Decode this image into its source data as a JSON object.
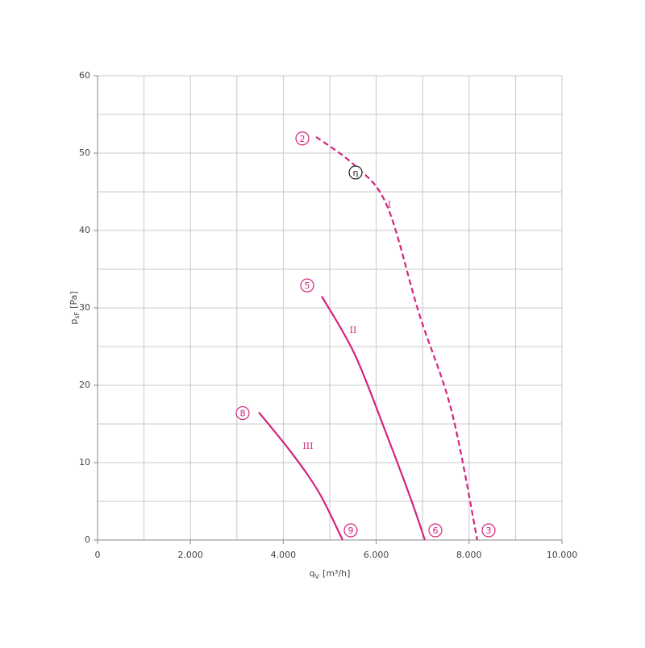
{
  "chart_data": {
    "type": "line",
    "xlabel": [
      "q",
      "V",
      "[m³/h]"
    ],
    "ylabel": [
      "p",
      "sF",
      "[Pa]"
    ],
    "xlim": [
      0,
      10000
    ],
    "ylim": [
      0,
      60
    ],
    "xticks": [
      0,
      {
        "value": 2000,
        "label": "2.000"
      },
      {
        "value": 4000,
        "label": "4.000"
      },
      {
        "value": 6000,
        "label": "6.000"
      },
      {
        "value": 8000,
        "label": "8.000"
      },
      {
        "value": 10000,
        "label": "10.000"
      }
    ],
    "yticks": [
      0,
      10,
      20,
      30,
      40,
      50,
      60
    ],
    "minor_xticks": [
      1000,
      3000,
      5000,
      7000,
      9000
    ],
    "minor_yticks": [
      5,
      15,
      25,
      35,
      45,
      55
    ],
    "grid": true,
    "series": [
      {
        "name": "I",
        "color": "#d4237f",
        "dashed": true,
        "x": [
          4705,
          5538,
          6233,
          6927,
          7622,
          8177
        ],
        "values": [
          52.1,
          48.4,
          43.2,
          29.2,
          16.7,
          0
        ]
      },
      {
        "name": "II",
        "color": "#d4237f",
        "dashed": false,
        "x": [
          4826,
          5538,
          6233,
          6753,
          7049
        ],
        "values": [
          31.5,
          24,
          13.5,
          5.2,
          0
        ]
      },
      {
        "name": "III",
        "color": "#d4237f",
        "dashed": false,
        "x": [
          3472,
          4149,
          4757,
          5278
        ],
        "values": [
          16.5,
          11.5,
          6.25,
          0
        ]
      }
    ],
    "series_label_positions": [
      {
        "x": 6285,
        "y": 43.3
      },
      {
        "x": 5503,
        "y": 27.1
      },
      {
        "x": 4531,
        "y": 12.1
      }
    ],
    "annotations": [
      {
        "text": "2",
        "x": 4410,
        "y": 51.9,
        "color": "#d4237f"
      },
      {
        "text": "5",
        "x": 4514,
        "y": 32.9,
        "color": "#d4237f"
      },
      {
        "text": "8",
        "x": 3125,
        "y": 16.4,
        "color": "#d4237f"
      },
      {
        "text": "9",
        "x": 5451,
        "y": 1.25,
        "color": "#d4237f"
      },
      {
        "text": "6",
        "x": 7274,
        "y": 1.25,
        "color": "#d4237f"
      },
      {
        "text": "3",
        "x": 8420,
        "y": 1.25,
        "color": "#d4237f"
      },
      {
        "text": "η",
        "x": 5556,
        "y": 47.5,
        "color": "#222222"
      }
    ]
  }
}
